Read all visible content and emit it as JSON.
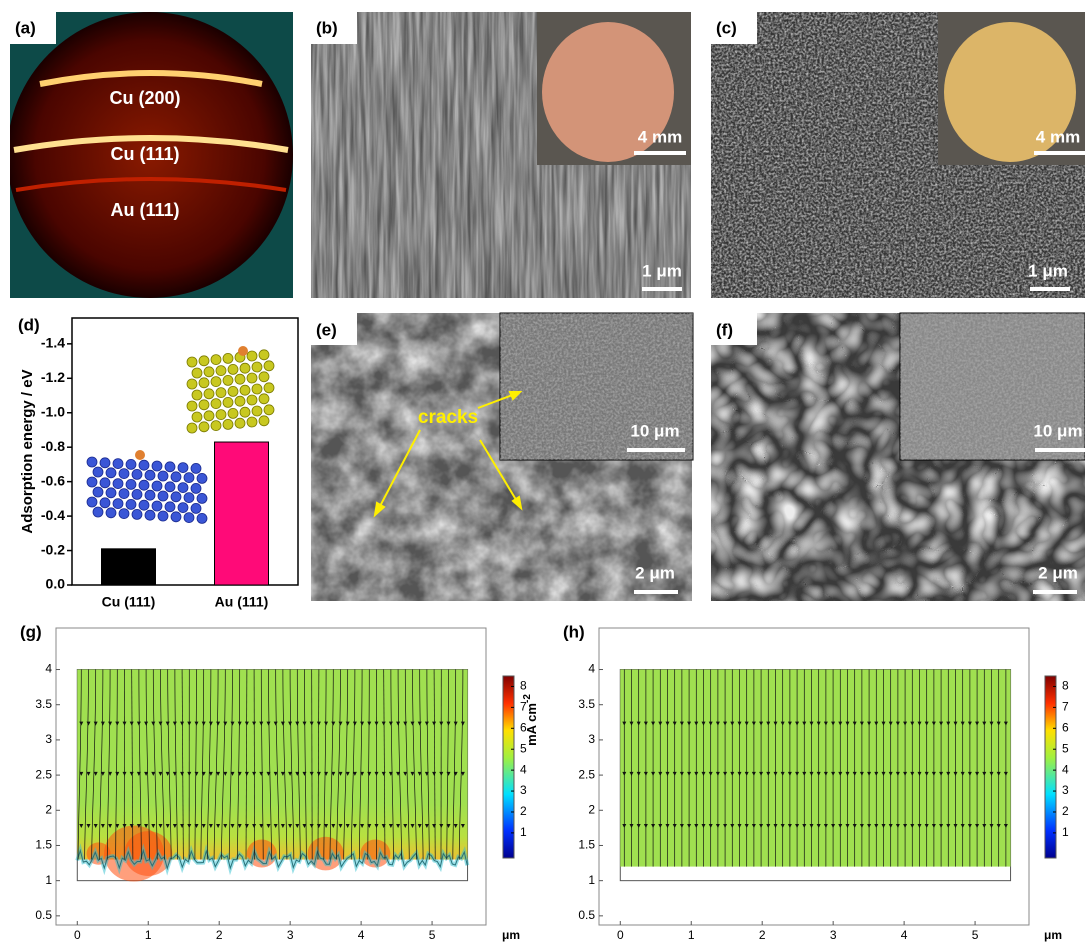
{
  "panels": {
    "a": {
      "label": "(a)",
      "rings": [
        "Cu (200)",
        "Cu (111)",
        "Au (111)"
      ]
    },
    "b": {
      "label": "(b)",
      "inset_scale": "4 mm",
      "scale": "1 μm"
    },
    "c": {
      "label": "(c)",
      "inset_scale": "4 mm",
      "scale": "1 μm"
    },
    "e": {
      "label": "(e)",
      "annotation": "cracks",
      "inset_scale": "10 μm",
      "scale": "2 μm"
    },
    "f": {
      "label": "(f)",
      "inset_scale": "10 μm",
      "scale": "2 μm"
    }
  },
  "chart_data": [
    {
      "type": "bar",
      "label": "(d)",
      "ylabel": "Adsorption energy / eV",
      "categories": [
        "Cu (111)",
        "Au (111)"
      ],
      "values": [
        -0.21,
        -0.83
      ],
      "colors": [
        "#000000",
        "#ff0a78"
      ],
      "ylim": [
        0,
        -1.55
      ],
      "yticks": [
        {
          "value": 0,
          "label": "0.0"
        },
        -0.2,
        -0.4,
        -0.6,
        -0.8,
        {
          "value": -1,
          "label": "-1.0"
        },
        -1.2,
        -1.4
      ]
    },
    {
      "type": "field",
      "label": "(g)",
      "xlim": [
        -0.3,
        5.76
      ],
      "xticks": [
        0,
        1,
        2,
        3,
        4,
        5
      ],
      "x_unit": "μm",
      "ylim": [
        0.37,
        4.59
      ],
      "yticks": [
        0.5,
        1,
        1.5,
        2,
        2.5,
        3,
        3.5,
        4
      ],
      "domain_x": [
        0,
        5.5
      ],
      "domain_y": [
        1,
        4
      ],
      "surface_y": 1.3,
      "rough": true,
      "colorbar": {
        "lim": [
          -0.2,
          8.5
        ],
        "ticks": [
          1,
          2,
          3,
          4,
          5,
          6,
          7,
          8
        ],
        "label": "mA cm",
        "label_sup": "-2"
      }
    },
    {
      "type": "field",
      "label": "(h)",
      "xlim": [
        -0.3,
        5.76
      ],
      "xticks": [
        0,
        1,
        2,
        3,
        4,
        5
      ],
      "x_unit": "μm",
      "ylim": [
        0.37,
        4.59
      ],
      "yticks": [
        0.5,
        1,
        1.5,
        2,
        2.5,
        3,
        3.5,
        4
      ],
      "domain_x": [
        0,
        5.5
      ],
      "domain_y": [
        1,
        4
      ],
      "surface_y": 1.2,
      "rough": false,
      "colorbar": {
        "lim": [
          -0.2,
          8.5
        ],
        "ticks": [
          1,
          2,
          3,
          4,
          5,
          6,
          7,
          8
        ]
      }
    }
  ]
}
